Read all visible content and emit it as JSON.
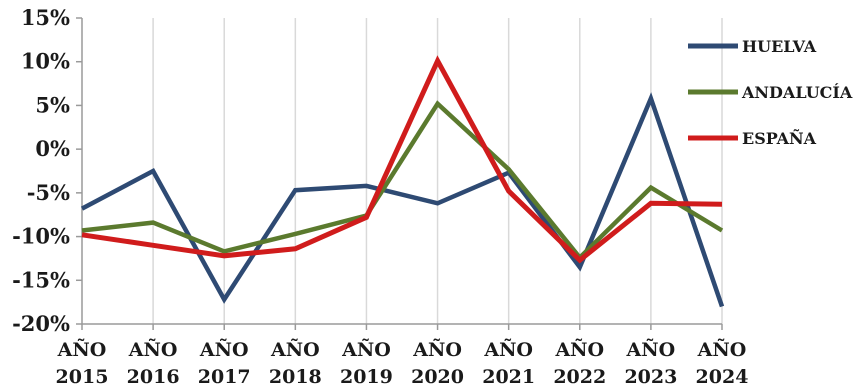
{
  "chart_data": {
    "type": "line",
    "title": "",
    "xlabel": "",
    "ylabel": "",
    "categories": [
      [
        "AÑO",
        "2015"
      ],
      [
        "AÑO",
        "2016"
      ],
      [
        "AÑO",
        "2017"
      ],
      [
        "AÑO",
        "2018"
      ],
      [
        "AÑO",
        "2019"
      ],
      [
        "AÑO",
        "2020"
      ],
      [
        "AÑO",
        "2021"
      ],
      [
        "AÑO",
        "2022"
      ],
      [
        "AÑO",
        "2023"
      ],
      [
        "AÑO",
        "2024"
      ]
    ],
    "ylim": [
      -20,
      15
    ],
    "yticks": [
      15,
      10,
      5,
      0,
      -5,
      -10,
      -15,
      -20
    ],
    "ytick_labels": [
      "15%",
      "10%",
      "5%",
      "0%",
      "-5%",
      "-10%",
      "-15%",
      "-20%"
    ],
    "grid": "vertical",
    "legend": "right",
    "series": [
      {
        "name": "HUELVA",
        "color": "#2e4a73",
        "values": [
          -6.8,
          -2.5,
          -17.2,
          -4.7,
          -4.2,
          -6.2,
          -2.7,
          -13.5,
          5.8,
          -18.0
        ]
      },
      {
        "name": "ANDALUCÍA",
        "color": "#5b7a2e",
        "values": [
          -9.3,
          -8.4,
          -11.7,
          -9.7,
          -7.6,
          5.2,
          -2.3,
          -12.4,
          -4.4,
          -9.3
        ]
      },
      {
        "name": "ESPAÑA",
        "color": "#d01c1c",
        "values": [
          -9.8,
          -11.0,
          -12.2,
          -11.4,
          -7.8,
          10.1,
          -4.8,
          -12.7,
          -6.2,
          -6.3
        ]
      }
    ]
  }
}
